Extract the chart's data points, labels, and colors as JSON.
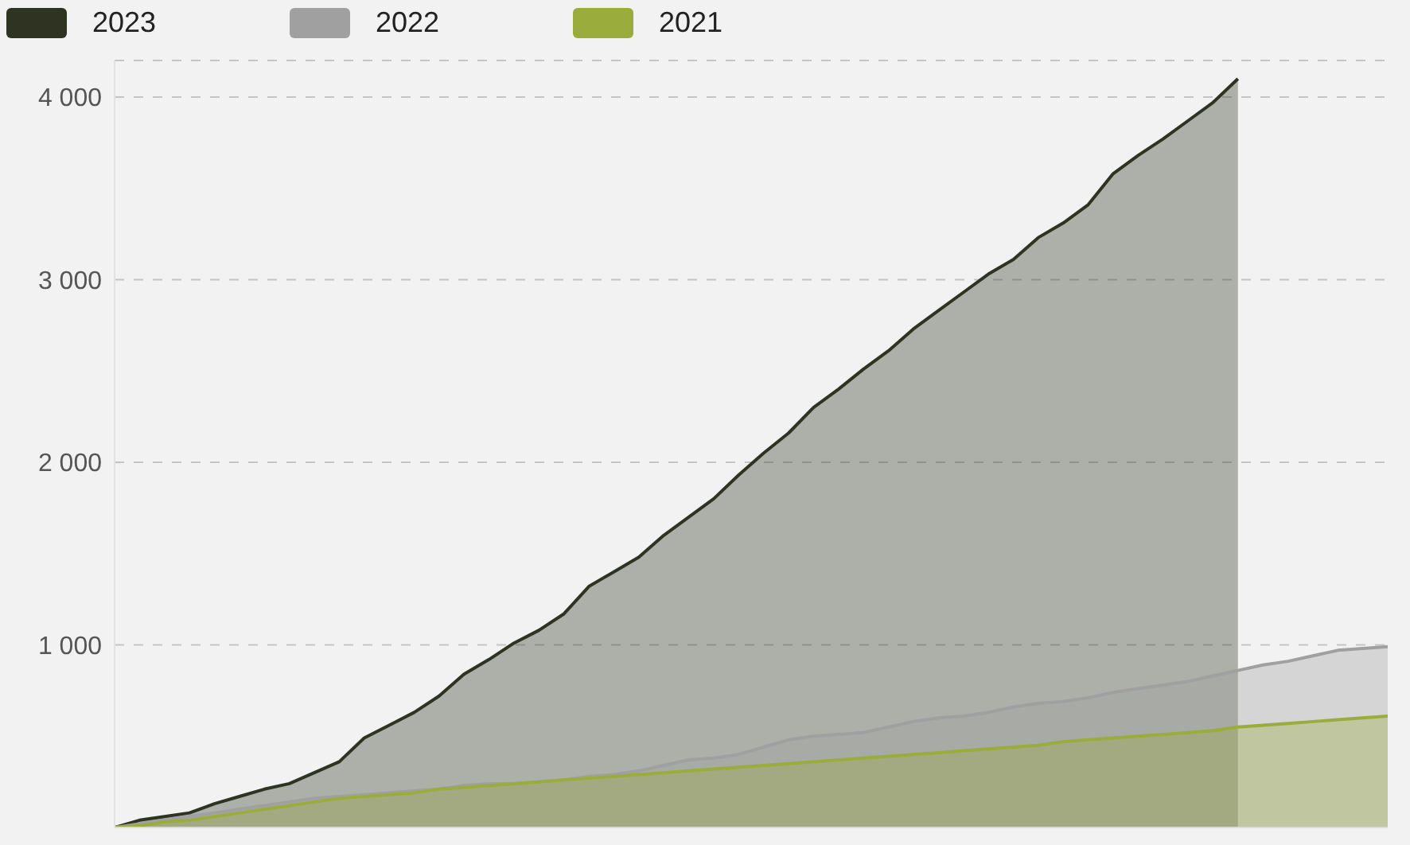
{
  "chart_data": {
    "type": "area",
    "categories": [
      null,
      null,
      null,
      null,
      null,
      null,
      null,
      null,
      null,
      null,
      null,
      null,
      null,
      null,
      null,
      null,
      null,
      null,
      null,
      null,
      null,
      null,
      null,
      null,
      null,
      null,
      null,
      null,
      null,
      null,
      null,
      null,
      null,
      null,
      null,
      null,
      null,
      null,
      null,
      null,
      null,
      null,
      null,
      null,
      null,
      null,
      null,
      null,
      null,
      null,
      null,
      null
    ],
    "series": [
      {
        "name": "2023",
        "color": "#2f3322",
        "values": [
          0,
          40,
          60,
          80,
          130,
          170,
          210,
          240,
          300,
          360,
          490,
          560,
          630,
          720,
          840,
          920,
          1010,
          1080,
          1170,
          1320,
          1400,
          1480,
          1600,
          1700,
          1800,
          1930,
          2050,
          2160,
          2300,
          2400,
          2510,
          2610,
          2730,
          2830,
          2930,
          3030,
          3110,
          3230,
          3310,
          3410,
          3580,
          3680,
          3770,
          3870,
          3970,
          4100,
          null,
          null,
          null,
          null,
          null,
          null
        ]
      },
      {
        "name": "2022",
        "color": "#a0a0a0",
        "values": [
          0,
          20,
          40,
          60,
          80,
          100,
          120,
          140,
          160,
          170,
          180,
          190,
          200,
          210,
          230,
          240,
          240,
          250,
          260,
          280,
          290,
          310,
          340,
          370,
          380,
          400,
          440,
          480,
          500,
          510,
          520,
          550,
          580,
          600,
          610,
          630,
          660,
          680,
          690,
          710,
          740,
          760,
          780,
          800,
          830,
          860,
          890,
          910,
          940,
          970,
          980,
          990
        ]
      },
      {
        "name": "2021",
        "color": "#9aac3c",
        "values": [
          0,
          10,
          30,
          40,
          60,
          80,
          100,
          120,
          140,
          160,
          170,
          180,
          190,
          210,
          220,
          230,
          240,
          250,
          260,
          270,
          280,
          290,
          300,
          310,
          320,
          330,
          340,
          350,
          360,
          370,
          380,
          390,
          400,
          410,
          420,
          430,
          440,
          450,
          470,
          480,
          490,
          500,
          510,
          520,
          530,
          550,
          560,
          570,
          580,
          590,
          600,
          610
        ]
      }
    ],
    "ylim": [
      0,
      4200
    ],
    "yticks": [
      {
        "value": 0,
        "label": null
      },
      {
        "value": 1000,
        "label": "1 000"
      },
      {
        "value": 2000,
        "label": "2 000"
      },
      {
        "value": 3000,
        "label": "3 000"
      },
      {
        "value": 4000,
        "label": "4 000"
      }
    ],
    "grid": "y",
    "legend": "top left",
    "tick_labels": "y",
    "marker": "none",
    "line_style": "solid"
  }
}
